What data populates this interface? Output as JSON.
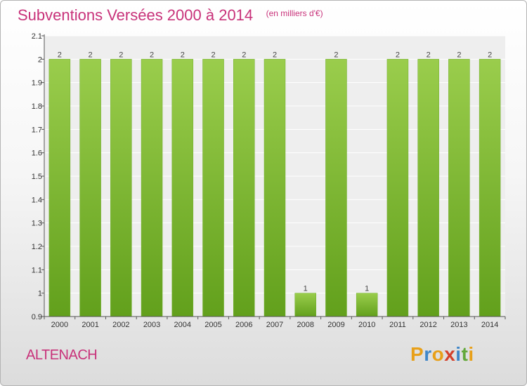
{
  "chart_data": {
    "type": "bar",
    "title": "Subventions Versées 2000 à 2014",
    "unit": "(en milliers d'€)",
    "categories": [
      "2000",
      "2001",
      "2002",
      "2003",
      "2004",
      "2005",
      "2006",
      "2007",
      "2008",
      "2009",
      "2010",
      "2011",
      "2012",
      "2013",
      "2014"
    ],
    "values": [
      2,
      2,
      2,
      2,
      2,
      2,
      2,
      2,
      1,
      2,
      1,
      2,
      2,
      2,
      2
    ],
    "data_labels": [
      "2",
      "2",
      "2",
      "2",
      "2",
      "2",
      "2",
      "2",
      "1",
      "2",
      "1",
      "2",
      "2",
      "2",
      "2"
    ],
    "ylim": [
      0.9,
      2.1
    ],
    "yticks": [
      0.9,
      1,
      1.1,
      1.2,
      1.3,
      1.4,
      1.5,
      1.6,
      1.7,
      1.8,
      1.9,
      2,
      2.1
    ],
    "ytick_labels": [
      "0.9",
      "1",
      "1.1",
      "1.2",
      "1.3",
      "1.4",
      "1.5",
      "1.6",
      "1.7",
      "1.8",
      "1.9",
      "2",
      "2.1"
    ],
    "xlabel": "",
    "ylabel": "",
    "grid": true,
    "bar_color_top": "#9acd4c",
    "bar_color_bottom": "#62a01c",
    "plot_background": "#eeeeee"
  },
  "place": "ALTENACH",
  "brand": {
    "letters": [
      "P",
      "r",
      "o",
      "x",
      "i",
      "t",
      "i"
    ],
    "colors": [
      "#e8a019",
      "#3f86c8",
      "#e8a019",
      "#d4402a",
      "#3f86c8",
      "#63a83a",
      "#e8a019"
    ]
  }
}
